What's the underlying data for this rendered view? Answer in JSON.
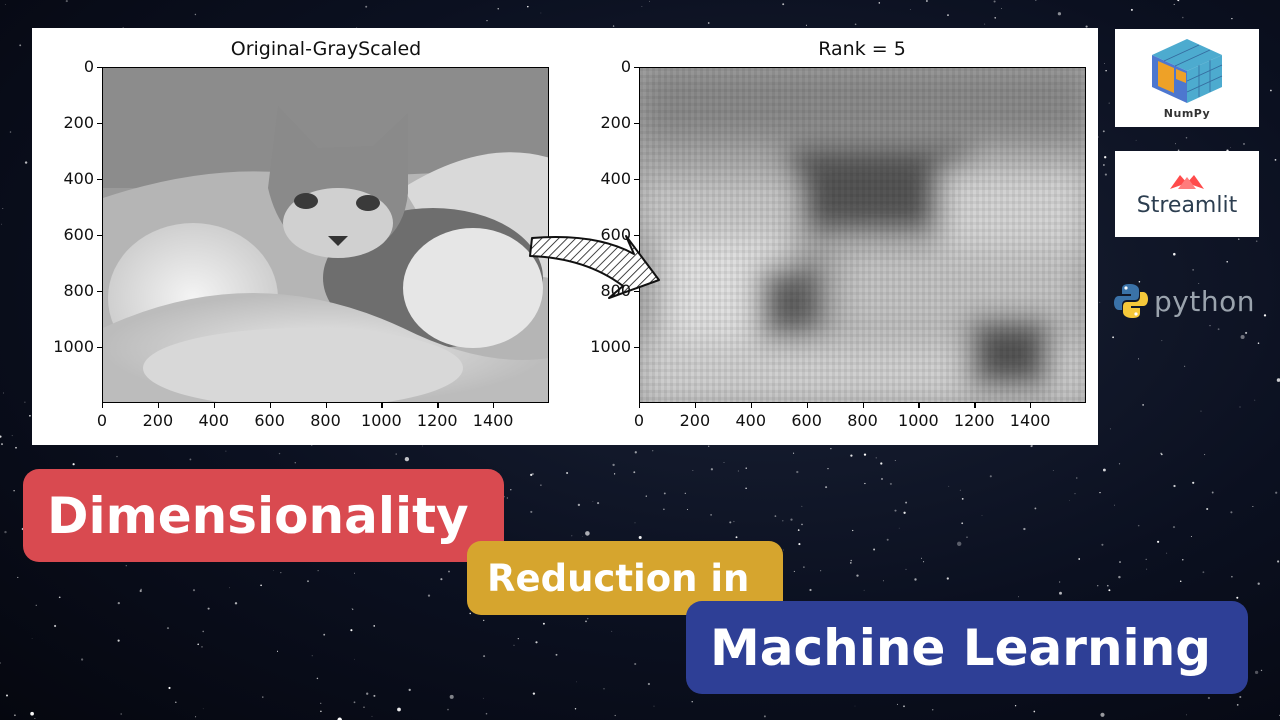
{
  "figure": {
    "left_title": "Original-GrayScaled",
    "right_title": "Rank = 5",
    "y_ticks": [
      "0",
      "200",
      "400",
      "600",
      "800",
      "1000"
    ],
    "x_ticks": [
      "0",
      "200",
      "400",
      "600",
      "800",
      "1000",
      "1200",
      "1400"
    ]
  },
  "logos": {
    "numpy": "NumPy",
    "streamlit": "Streamlit",
    "python": "python"
  },
  "headline": {
    "line1": "Dimensionality",
    "line2": "Reduction in",
    "line3": "Machine Learning"
  },
  "colors": {
    "banner1": "#d94a50",
    "banner2": "#d6a52e",
    "banner3": "#2e3f96"
  }
}
